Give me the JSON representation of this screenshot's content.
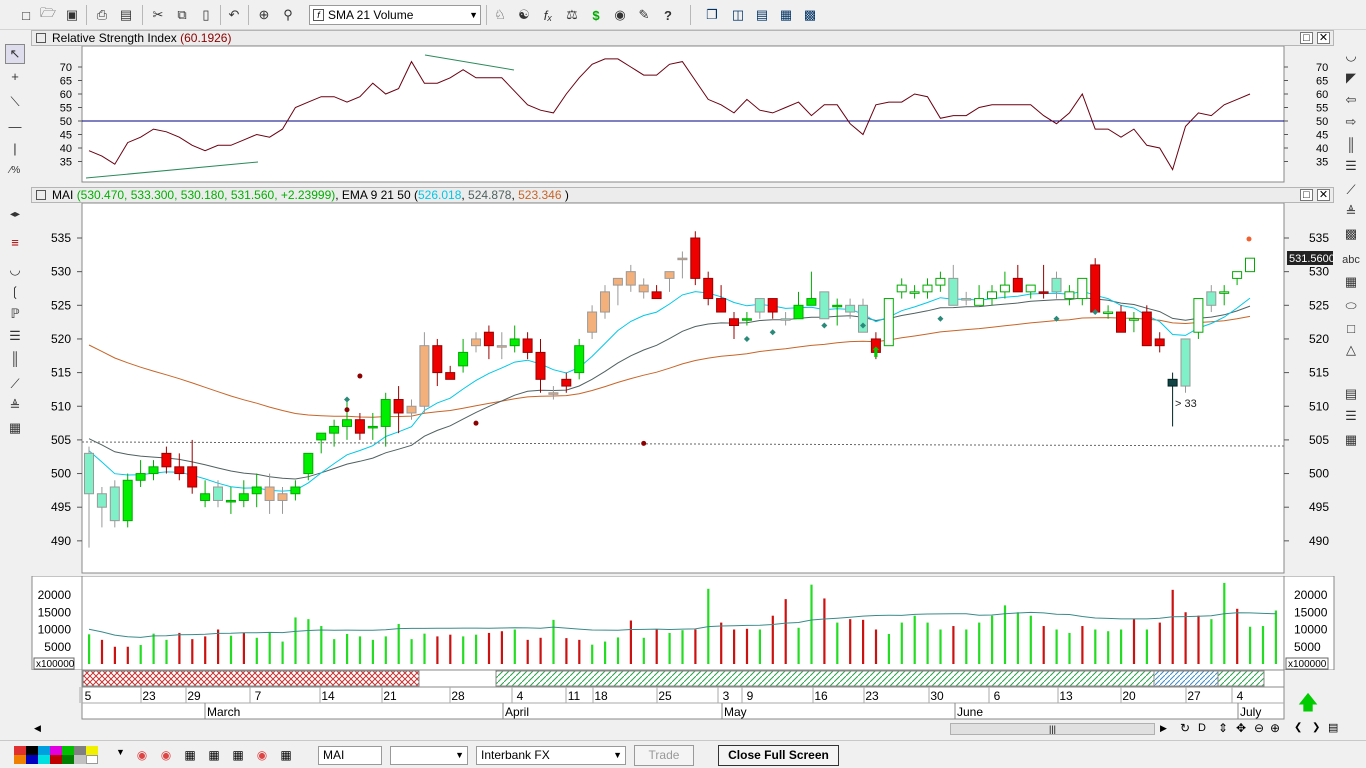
{
  "toolbar": {
    "study_select": "SMA 21 Volume",
    "icons": [
      "new-icon",
      "open-icon",
      "save-icon",
      "print-icon",
      "print-preview-icon",
      "cut-icon",
      "copy-icon",
      "paste-icon",
      "undo-icon",
      "crosshair-icon",
      "zoom-icon",
      "trade-icon",
      "indicator-icon",
      "function-icon",
      "expert-icon",
      "dollar-icon",
      "binoculars-icon",
      "edit-icon",
      "help-icon",
      "cascade-icon",
      "tile-vertical-icon",
      "tile-horizontal-icon",
      "tile-grid-icon",
      "layout-icon"
    ]
  },
  "rsi_pane": {
    "title_label": "Relative Strength Index",
    "title_value": "(60.1926)",
    "levels": [
      "70",
      "65",
      "60",
      "55",
      "50",
      "45",
      "40",
      "35"
    ],
    "values": [
      39,
      37,
      34,
      42,
      44,
      47,
      46,
      44,
      41,
      39,
      41,
      41,
      43,
      45,
      44,
      47,
      55,
      57,
      59,
      59,
      57,
      59,
      64,
      60,
      62,
      72,
      64,
      64,
      66,
      69,
      66,
      66,
      66,
      61,
      56,
      54,
      53,
      60,
      66,
      71,
      73,
      73,
      70,
      67,
      67,
      71,
      72,
      65,
      58,
      56,
      53,
      58,
      54,
      53,
      55,
      57,
      52,
      56,
      56,
      49,
      45,
      56,
      57,
      57,
      60,
      59,
      51,
      52,
      52,
      55,
      56,
      56,
      56,
      56,
      52,
      49,
      53,
      60,
      47,
      47,
      44,
      47,
      41,
      40,
      32,
      48,
      53,
      52,
      56,
      58,
      60
    ]
  },
  "price_pane": {
    "symbol": "MAI",
    "ohlc": "(530.470, 533.300, 530.180, 531.560, +2.23999)",
    "ema_label": "EMA 9 21 50",
    "ema_open": "(",
    "ema9": "526.018",
    "ema21": "524.878",
    "ema50": "523.346",
    "ema_close": ")",
    "levels": [
      "535",
      "530",
      "525",
      "520",
      "515",
      "510",
      "505",
      "500",
      "495",
      "490"
    ],
    "last_price": "531.5600",
    "annotation": "> 33"
  },
  "volume_pane": {
    "levels": [
      "20000",
      "15000",
      "10000",
      "5000"
    ],
    "multiplier": "x100000",
    "values": [
      8600,
      7000,
      5000,
      5000,
      5500,
      8800,
      7000,
      9000,
      7200,
      8000,
      10000,
      8200,
      9000,
      7600,
      9000,
      6500,
      13500,
      13000,
      11000,
      7200,
      8700,
      8000,
      7000,
      8000,
      11600,
      7200,
      8800,
      8000,
      8500,
      8000,
      8500,
      9000,
      9500,
      10000,
      7000,
      7600,
      12800,
      7500,
      7000,
      5600,
      6500,
      7700,
      12600,
      7600,
      10000,
      9000,
      9800,
      10000,
      21800,
      12000,
      10000,
      10200,
      10000,
      14000,
      18800,
      10500,
      23000,
      19000,
      12000,
      13000,
      12800,
      10000,
      8700,
      12000,
      14000,
      12000,
      10000,
      11000,
      10000,
      12000,
      14000,
      17000,
      15000,
      14000,
      11000,
      10000,
      9000,
      11000,
      10000,
      9500,
      10000,
      13000,
      10000,
      12000,
      21500,
      15000,
      14000,
      13000,
      23500,
      16000,
      10800,
      11000,
      15500
    ]
  },
  "time_axis": {
    "days": [
      "5",
      "23",
      "29",
      "7",
      "14",
      "21",
      "28",
      "4",
      "11",
      "18",
      "25",
      "3",
      "9",
      "16",
      "23",
      "30",
      "6",
      "13",
      "20",
      "27",
      "4"
    ],
    "months": [
      "March",
      "April",
      "May",
      "June",
      "July"
    ]
  },
  "bottom": {
    "symbol_input": "MAI",
    "empty_select": "",
    "feed_select": "Interbank FX",
    "trade_button": "Trade",
    "close_button": "Close Full Screen"
  },
  "colors": {
    "up": "#00ee00",
    "down": "#ee0000",
    "ema9": "#00c8e8",
    "ema21": "#506060",
    "ema50": "#c86428",
    "rsi": "#6a0010",
    "volume_up": "#22dd22",
    "volume_down": "#cc1111"
  }
}
